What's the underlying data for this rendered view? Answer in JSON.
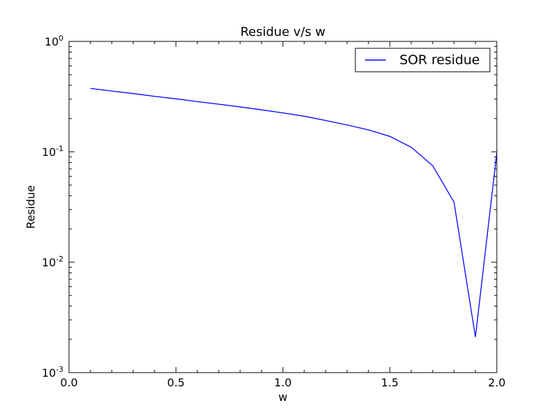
{
  "chart_data": {
    "type": "line",
    "title": "Residue v/s w",
    "xlabel": "w",
    "ylabel": "Residue",
    "xlim": [
      0.0,
      2.0
    ],
    "ylim": [
      0.001,
      1.0
    ],
    "yscale": "log",
    "grid": false,
    "legend_position": "top-right",
    "x_ticks": [
      "0.0",
      "0.5",
      "1.0",
      "1.5",
      "2.0"
    ],
    "y_ticks": [
      {
        "base": "10",
        "exp": "-3",
        "value": 0.001
      },
      {
        "base": "10",
        "exp": "-2",
        "value": 0.01
      },
      {
        "base": "10",
        "exp": "-1",
        "value": 0.1
      },
      {
        "base": "10",
        "exp": "0",
        "value": 1
      }
    ],
    "series": [
      {
        "name": "SOR residue",
        "color": "#0000ff",
        "x": [
          0.1,
          0.2,
          0.3,
          0.4,
          0.5,
          0.6,
          0.7,
          0.8,
          0.9,
          1.0,
          1.1,
          1.2,
          1.3,
          1.4,
          1.5,
          1.6,
          1.7,
          1.8,
          1.9,
          2.0
        ],
        "y": [
          0.375,
          0.355,
          0.337,
          0.318,
          0.302,
          0.285,
          0.27,
          0.255,
          0.24,
          0.225,
          0.21,
          0.192,
          0.175,
          0.158,
          0.138,
          0.11,
          0.075,
          0.035,
          0.0021,
          0.098
        ]
      }
    ]
  }
}
